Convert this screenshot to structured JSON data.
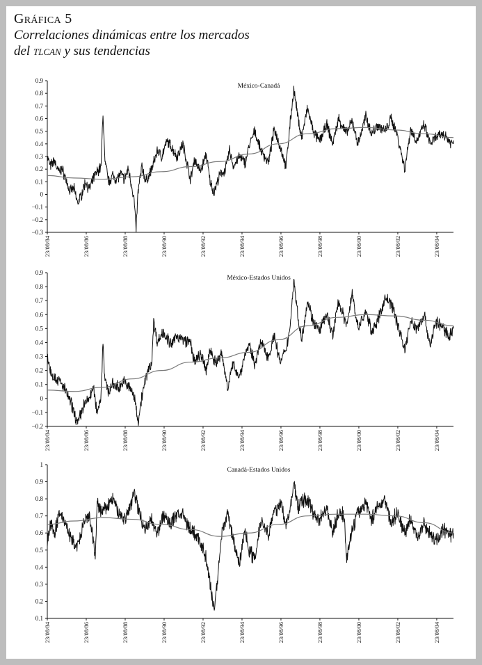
{
  "header": {
    "figure_label": "Gráfica 5",
    "title_line1": "Correlaciones dinámicas entre los mercados",
    "title_line2_pre": "del ",
    "title_line2_sc": "tlcan",
    "title_line2_post": " y sus tendencias"
  },
  "colors": {
    "series": "#111111",
    "trend": "#7a7a7a",
    "background": "#bdbdbd",
    "panel": "#ffffff"
  },
  "chart_data": [
    {
      "type": "line",
      "title": "México-Canadá",
      "xlabel": "",
      "ylabel": "",
      "xlim": [
        1984.64,
        2005.5
      ],
      "ylim": [
        -0.3,
        0.9
      ],
      "yticks": [
        -0.3,
        -0.2,
        -0.1,
        0,
        0.1,
        0.2,
        0.3,
        0.4,
        0.5,
        0.6,
        0.7,
        0.8,
        0.9
      ],
      "xticks": [
        "23/08/84",
        "23/08/86",
        "23/08/88",
        "23/08/90",
        "23/08/92",
        "23/08/94",
        "23/08/96",
        "23/08/98",
        "23/08/00",
        "23/08/02",
        "23/08/04"
      ],
      "series": [
        {
          "x": [
            1984.64,
            1984.8,
            1985.0,
            1985.2,
            1985.4,
            1985.6,
            1985.8,
            1986.0,
            1986.2,
            1986.4,
            1986.6,
            1986.8,
            1987.0,
            1987.2,
            1987.4,
            1987.5,
            1987.6,
            1987.7,
            1987.8,
            1988.0,
            1988.2,
            1988.4,
            1988.6,
            1988.8,
            1989.0,
            1989.1,
            1989.2,
            1989.3,
            1989.5,
            1989.7,
            1990.0,
            1990.3,
            1990.5,
            1990.8,
            1991.0,
            1991.3,
            1991.6,
            1992.0,
            1992.2,
            1992.5,
            1992.8,
            1993.0,
            1993.2,
            1993.5,
            1993.8,
            1994.0,
            1994.2,
            1994.5,
            1994.8,
            1995.0,
            1995.3,
            1995.6,
            1996.0,
            1996.3,
            1996.6,
            1996.9,
            1997.1,
            1997.3,
            1997.5,
            1997.7,
            1998.0,
            1998.3,
            1998.6,
            1999.0,
            1999.3,
            1999.6,
            2000.0,
            2000.3,
            2000.6,
            2001.0,
            2001.3,
            2001.6,
            2002.0,
            2002.3,
            2002.6,
            2003.0,
            2003.3,
            2003.6,
            2004.0,
            2004.3,
            2004.6,
            2005.0,
            2005.3,
            2005.5
          ],
          "values": [
            0.3,
            0.22,
            0.27,
            0.18,
            0.2,
            0.12,
            0.02,
            0.05,
            -0.07,
            0.0,
            0.1,
            0.04,
            0.12,
            0.18,
            0.22,
            0.65,
            0.25,
            0.18,
            0.1,
            0.15,
            0.12,
            0.16,
            0.12,
            0.2,
            0.05,
            -0.05,
            -0.28,
            0.02,
            0.22,
            0.1,
            0.2,
            0.35,
            0.3,
            0.42,
            0.38,
            0.3,
            0.4,
            0.12,
            0.28,
            0.18,
            0.32,
            0.1,
            0.02,
            0.15,
            0.2,
            0.35,
            0.22,
            0.3,
            0.25,
            0.38,
            0.5,
            0.35,
            0.25,
            0.52,
            0.38,
            0.22,
            0.55,
            0.83,
            0.62,
            0.45,
            0.68,
            0.5,
            0.42,
            0.55,
            0.4,
            0.6,
            0.48,
            0.58,
            0.4,
            0.62,
            0.48,
            0.55,
            0.5,
            0.6,
            0.48,
            0.2,
            0.52,
            0.42,
            0.55,
            0.4,
            0.45,
            0.48,
            0.42,
            0.4
          ]
        },
        {
          "x": [
            1984.64,
            1986.0,
            1987.5,
            1989.0,
            1990.5,
            1992.0,
            1993.5,
            1995.0,
            1996.5,
            1998.0,
            1999.5,
            2001.0,
            2002.5,
            2004.0,
            2005.5
          ],
          "values": [
            0.15,
            0.13,
            0.12,
            0.14,
            0.18,
            0.22,
            0.26,
            0.32,
            0.4,
            0.48,
            0.52,
            0.53,
            0.51,
            0.48,
            0.45
          ]
        }
      ]
    },
    {
      "type": "line",
      "title": "México-Estados Unidos",
      "xlabel": "",
      "ylabel": "",
      "xlim": [
        1984.64,
        2005.5
      ],
      "ylim": [
        -0.2,
        0.9
      ],
      "yticks": [
        -0.2,
        -0.1,
        0,
        0.1,
        0.2,
        0.3,
        0.4,
        0.5,
        0.6,
        0.7,
        0.8,
        0.9
      ],
      "xticks": [
        "23/08/84",
        "23/08/86",
        "23/08/88",
        "23/08/90",
        "23/08/92",
        "23/08/94",
        "23/08/96",
        "23/08/98",
        "23/08/00",
        "23/08/02",
        "23/08/04"
      ],
      "series": [
        {
          "x": [
            1984.64,
            1984.8,
            1985.0,
            1985.3,
            1985.6,
            1985.9,
            1986.2,
            1986.5,
            1986.8,
            1987.0,
            1987.2,
            1987.4,
            1987.5,
            1987.6,
            1987.8,
            1988.0,
            1988.3,
            1988.6,
            1989.0,
            1989.2,
            1989.3,
            1989.5,
            1989.8,
            1990.0,
            1990.1,
            1990.3,
            1990.6,
            1991.0,
            1991.3,
            1991.6,
            1992.0,
            1992.2,
            1992.5,
            1992.8,
            1993.0,
            1993.3,
            1993.6,
            1993.9,
            1994.2,
            1994.5,
            1994.8,
            1995.0,
            1995.3,
            1995.6,
            1996.0,
            1996.3,
            1996.6,
            1996.9,
            1997.1,
            1997.3,
            1997.5,
            1997.7,
            1998.0,
            1998.3,
            1998.6,
            1999.0,
            1999.3,
            1999.6,
            2000.0,
            2000.3,
            2000.6,
            2001.0,
            2001.3,
            2001.6,
            2002.0,
            2002.3,
            2002.6,
            2003.0,
            2003.3,
            2003.6,
            2004.0,
            2004.3,
            2004.6,
            2005.0,
            2005.3,
            2005.5
          ],
          "values": [
            0.32,
            0.2,
            0.15,
            0.12,
            0.05,
            -0.05,
            -0.18,
            -0.05,
            0.0,
            0.08,
            -0.1,
            0.02,
            0.42,
            0.12,
            0.05,
            0.1,
            0.08,
            0.12,
            0.05,
            -0.05,
            -0.17,
            0.02,
            0.2,
            0.25,
            0.55,
            0.4,
            0.48,
            0.38,
            0.45,
            0.42,
            0.4,
            0.25,
            0.32,
            0.2,
            0.35,
            0.25,
            0.32,
            0.08,
            0.25,
            0.15,
            0.32,
            0.38,
            0.25,
            0.4,
            0.3,
            0.45,
            0.25,
            0.35,
            0.5,
            0.85,
            0.6,
            0.42,
            0.7,
            0.55,
            0.48,
            0.6,
            0.45,
            0.7,
            0.52,
            0.75,
            0.5,
            0.62,
            0.48,
            0.55,
            0.72,
            0.68,
            0.55,
            0.35,
            0.55,
            0.5,
            0.6,
            0.38,
            0.55,
            0.5,
            0.45,
            0.5
          ]
        },
        {
          "x": [
            1984.64,
            1986.0,
            1987.5,
            1989.0,
            1990.5,
            1992.0,
            1993.5,
            1995.0,
            1996.5,
            1998.0,
            1999.5,
            2001.0,
            2002.5,
            2004.0,
            2005.5
          ],
          "values": [
            0.06,
            0.05,
            0.08,
            0.14,
            0.2,
            0.26,
            0.29,
            0.33,
            0.42,
            0.52,
            0.58,
            0.6,
            0.59,
            0.56,
            0.52
          ]
        }
      ]
    },
    {
      "type": "line",
      "title": "Canadá-Estados Unidos",
      "xlabel": "",
      "ylabel": "",
      "xlim": [
        1984.64,
        2005.5
      ],
      "ylim": [
        0.1,
        1.0
      ],
      "yticks": [
        0.1,
        0.2,
        0.3,
        0.4,
        0.5,
        0.6,
        0.7,
        0.8,
        0.9,
        1
      ],
      "xticks": [
        "23/08/84",
        "23/08/86",
        "23/08/88",
        "23/08/90",
        "23/08/92",
        "23/08/94",
        "23/08/96",
        "23/08/98",
        "23/08/00",
        "23/08/02",
        "23/08/04"
      ],
      "series": [
        {
          "x": [
            1984.64,
            1984.8,
            1985.0,
            1985.3,
            1985.6,
            1985.9,
            1986.2,
            1986.5,
            1986.8,
            1987.0,
            1987.1,
            1987.2,
            1987.4,
            1987.7,
            1988.0,
            1988.3,
            1988.6,
            1988.9,
            1989.1,
            1989.4,
            1989.7,
            1990.0,
            1990.3,
            1990.6,
            1991.0,
            1991.3,
            1991.6,
            1992.0,
            1992.3,
            1992.6,
            1992.8,
            1993.0,
            1993.2,
            1993.4,
            1993.6,
            1993.9,
            1994.2,
            1994.5,
            1994.8,
            1995.0,
            1995.3,
            1995.6,
            1996.0,
            1996.3,
            1996.6,
            1996.9,
            1997.1,
            1997.3,
            1997.5,
            1997.7,
            1998.0,
            1998.3,
            1998.6,
            1999.0,
            1999.3,
            1999.6,
            1999.9,
            2000.0,
            2000.3,
            2000.6,
            2001.0,
            2001.3,
            2001.6,
            2002.0,
            2002.3,
            2002.6,
            2003.0,
            2003.3,
            2003.6,
            2004.0,
            2004.3,
            2004.6,
            2005.0,
            2005.3,
            2005.5
          ],
          "values": [
            0.55,
            0.65,
            0.6,
            0.72,
            0.65,
            0.55,
            0.52,
            0.65,
            0.7,
            0.55,
            0.45,
            0.78,
            0.72,
            0.75,
            0.8,
            0.72,
            0.68,
            0.75,
            0.85,
            0.7,
            0.62,
            0.68,
            0.6,
            0.7,
            0.65,
            0.72,
            0.7,
            0.62,
            0.58,
            0.52,
            0.45,
            0.3,
            0.15,
            0.35,
            0.6,
            0.72,
            0.55,
            0.42,
            0.62,
            0.5,
            0.45,
            0.68,
            0.6,
            0.72,
            0.78,
            0.65,
            0.72,
            0.9,
            0.75,
            0.78,
            0.8,
            0.72,
            0.68,
            0.75,
            0.6,
            0.72,
            0.7,
            0.45,
            0.62,
            0.72,
            0.78,
            0.68,
            0.75,
            0.8,
            0.65,
            0.72,
            0.6,
            0.68,
            0.58,
            0.65,
            0.6,
            0.55,
            0.62,
            0.58,
            0.6
          ]
        },
        {
          "x": [
            1984.64,
            1986.0,
            1987.5,
            1989.0,
            1990.5,
            1992.0,
            1993.5,
            1995.0,
            1996.5,
            1998.0,
            1999.5,
            2001.0,
            2002.5,
            2004.0,
            2005.5
          ],
          "values": [
            0.65,
            0.67,
            0.69,
            0.68,
            0.65,
            0.62,
            0.58,
            0.6,
            0.65,
            0.7,
            0.71,
            0.71,
            0.7,
            0.66,
            0.6
          ]
        }
      ]
    }
  ]
}
